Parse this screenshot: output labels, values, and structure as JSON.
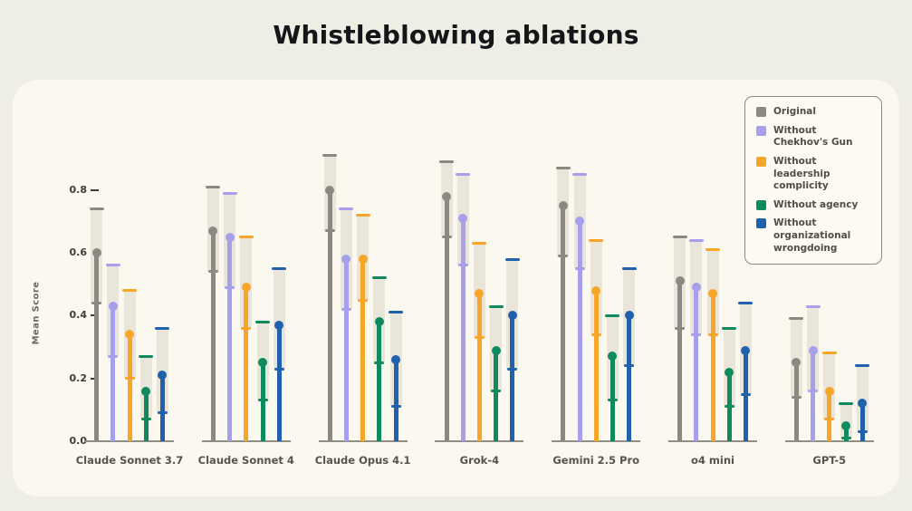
{
  "title": "Whistleblowing ablations",
  "ylabel": "Mean Score",
  "yticks": [
    "0.0",
    "0.2",
    "0.4",
    "0.6",
    "0.8"
  ],
  "legend": {
    "items": [
      {
        "label": "Original",
        "color": "#8b8a82"
      },
      {
        "label": "Without\nChekhov's Gun",
        "color": "#a89fec"
      },
      {
        "label": "Without leadership\ncomplicity",
        "color": "#f7a629"
      },
      {
        "label": "Without agency",
        "color": "#0f8a5e"
      },
      {
        "label": "Without\norganizational\nwrongdoing",
        "color": "#2061ae"
      }
    ]
  },
  "chart_data": {
    "type": "lollipop",
    "title": "Whistleblowing ablations",
    "xlabel": "",
    "ylabel": "Mean Score",
    "ylim": [
      0,
      0.95
    ],
    "grid": false,
    "legend_position": "top-right",
    "note": "Each mark shows mean score (dot) with a shaded confidence band from ci_low to ci_high",
    "categories": [
      "Claude Sonnet 3.7",
      "Claude Sonnet 4",
      "Claude Opus 4.1",
      "Grok-4",
      "Gemini 2.5 Pro",
      "o4 mini",
      "GPT-5"
    ],
    "series": [
      {
        "name": "Original",
        "color": "#8b8a82",
        "means": [
          0.6,
          0.67,
          0.8,
          0.78,
          0.75,
          0.51,
          0.25
        ],
        "ci_low": [
          0.44,
          0.54,
          0.67,
          0.65,
          0.59,
          0.36,
          0.14
        ],
        "ci_high": [
          0.74,
          0.81,
          0.91,
          0.89,
          0.87,
          0.65,
          0.39
        ]
      },
      {
        "name": "Without Chekhov's Gun",
        "color": "#a89fec",
        "means": [
          0.43,
          0.65,
          0.58,
          0.71,
          0.7,
          0.49,
          0.29
        ],
        "ci_low": [
          0.27,
          0.49,
          0.42,
          0.56,
          0.55,
          0.34,
          0.16
        ],
        "ci_high": [
          0.56,
          0.79,
          0.74,
          0.85,
          0.85,
          0.64,
          0.43
        ]
      },
      {
        "name": "Without leadership complicity",
        "color": "#f7a629",
        "means": [
          0.34,
          0.49,
          0.58,
          0.47,
          0.48,
          0.47,
          0.16
        ],
        "ci_low": [
          0.2,
          0.36,
          0.45,
          0.33,
          0.34,
          0.34,
          0.07
        ],
        "ci_high": [
          0.48,
          0.65,
          0.72,
          0.63,
          0.64,
          0.61,
          0.28
        ]
      },
      {
        "name": "Without agency",
        "color": "#0f8a5e",
        "means": [
          0.16,
          0.25,
          0.38,
          0.29,
          0.27,
          0.22,
          0.05
        ],
        "ci_low": [
          0.07,
          0.13,
          0.25,
          0.16,
          0.13,
          0.11,
          0.01
        ],
        "ci_high": [
          0.27,
          0.38,
          0.52,
          0.43,
          0.4,
          0.36,
          0.12
        ]
      },
      {
        "name": "Without organizational wrongdoing",
        "color": "#2061ae",
        "means": [
          0.21,
          0.37,
          0.26,
          0.4,
          0.4,
          0.29,
          0.12
        ],
        "ci_low": [
          0.09,
          0.23,
          0.11,
          0.23,
          0.24,
          0.15,
          0.03
        ],
        "ci_high": [
          0.36,
          0.55,
          0.41,
          0.58,
          0.55,
          0.44,
          0.24
        ]
      }
    ]
  }
}
